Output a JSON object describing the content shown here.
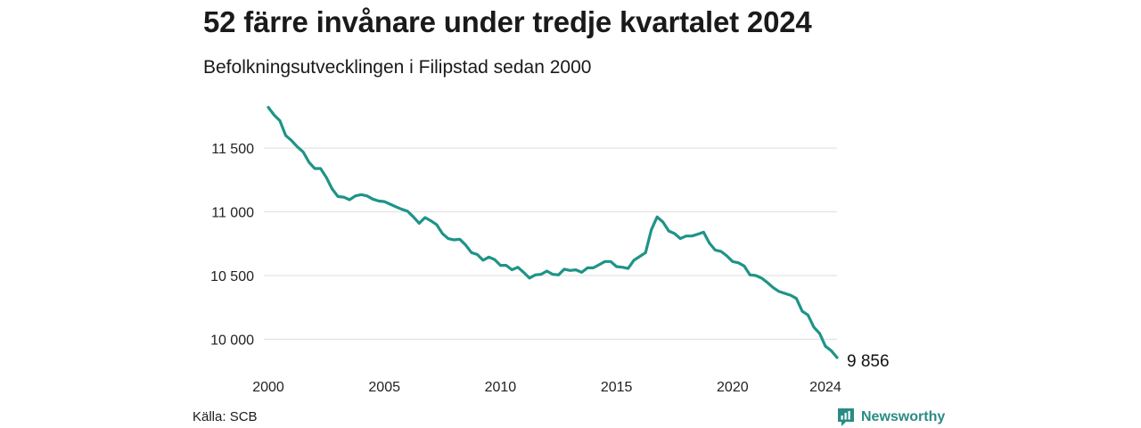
{
  "header": {
    "title": "52 färre invånare under tredje kvartalet 2024",
    "subtitle": "Befolkningsutvecklingen i Filipstad sedan 2000"
  },
  "footer": {
    "source": "Källa: SCB",
    "brand": "Newsworthy",
    "brand_icon": "newsworthy-logo-icon"
  },
  "colors": {
    "line": "#1e9488",
    "grid": "#dddddd",
    "brand": "#2a8b84"
  },
  "chart_data": {
    "type": "line",
    "x_ticks": [
      "2000",
      "2005",
      "2010",
      "2015",
      "2020",
      "2024"
    ],
    "y_ticks": [
      "10 000",
      "10 500",
      "11 000",
      "11 500"
    ],
    "y_tick_values": [
      10000,
      10500,
      11000,
      11500
    ],
    "ylim": [
      9856,
      11830
    ],
    "grid": "horizontal",
    "end_label": "9 856",
    "series": [
      {
        "values": [
          [
            "2000-01",
            11820
          ],
          [
            "2000-04",
            11760
          ],
          [
            "2000-07",
            11715
          ],
          [
            "2000-10",
            11600
          ],
          [
            "2001-01",
            11560
          ],
          [
            "2001-04",
            11510
          ],
          [
            "2001-07",
            11470
          ],
          [
            "2001-10",
            11390
          ],
          [
            "2002-01",
            11340
          ],
          [
            "2002-04",
            11340
          ],
          [
            "2002-07",
            11270
          ],
          [
            "2002-10",
            11180
          ],
          [
            "2003-01",
            11120
          ],
          [
            "2003-04",
            11115
          ],
          [
            "2003-07",
            11095
          ],
          [
            "2003-10",
            11125
          ],
          [
            "2004-01",
            11135
          ],
          [
            "2004-04",
            11125
          ],
          [
            "2004-07",
            11100
          ],
          [
            "2004-10",
            11085
          ],
          [
            "2005-01",
            11080
          ],
          [
            "2005-04",
            11060
          ],
          [
            "2005-07",
            11040
          ],
          [
            "2005-10",
            11020
          ],
          [
            "2006-01",
            11005
          ],
          [
            "2006-04",
            10960
          ],
          [
            "2006-07",
            10910
          ],
          [
            "2006-10",
            10955
          ],
          [
            "2007-01",
            10930
          ],
          [
            "2007-04",
            10900
          ],
          [
            "2007-07",
            10830
          ],
          [
            "2007-10",
            10790
          ],
          [
            "2008-01",
            10780
          ],
          [
            "2008-04",
            10785
          ],
          [
            "2008-07",
            10740
          ],
          [
            "2008-10",
            10680
          ],
          [
            "2009-01",
            10665
          ],
          [
            "2009-04",
            10620
          ],
          [
            "2009-07",
            10645
          ],
          [
            "2009-10",
            10625
          ],
          [
            "2010-01",
            10580
          ],
          [
            "2010-04",
            10580
          ],
          [
            "2010-07",
            10545
          ],
          [
            "2010-10",
            10565
          ],
          [
            "2011-01",
            10525
          ],
          [
            "2011-04",
            10480
          ],
          [
            "2011-07",
            10505
          ],
          [
            "2011-10",
            10510
          ],
          [
            "2012-01",
            10535
          ],
          [
            "2012-04",
            10510
          ],
          [
            "2012-07",
            10505
          ],
          [
            "2012-10",
            10550
          ],
          [
            "2013-01",
            10540
          ],
          [
            "2013-04",
            10545
          ],
          [
            "2013-07",
            10525
          ],
          [
            "2013-10",
            10560
          ],
          [
            "2014-01",
            10560
          ],
          [
            "2014-04",
            10585
          ],
          [
            "2014-07",
            10610
          ],
          [
            "2014-10",
            10610
          ],
          [
            "2015-01",
            10570
          ],
          [
            "2015-04",
            10565
          ],
          [
            "2015-07",
            10555
          ],
          [
            "2015-10",
            10620
          ],
          [
            "2016-01",
            10650
          ],
          [
            "2016-04",
            10680
          ],
          [
            "2016-07",
            10860
          ],
          [
            "2016-10",
            10960
          ],
          [
            "2017-01",
            10920
          ],
          [
            "2017-04",
            10850
          ],
          [
            "2017-07",
            10830
          ],
          [
            "2017-10",
            10790
          ],
          [
            "2018-01",
            10810
          ],
          [
            "2018-04",
            10810
          ],
          [
            "2018-07",
            10825
          ],
          [
            "2018-10",
            10840
          ],
          [
            "2019-01",
            10755
          ],
          [
            "2019-04",
            10700
          ],
          [
            "2019-07",
            10690
          ],
          [
            "2019-10",
            10655
          ],
          [
            "2020-01",
            10610
          ],
          [
            "2020-04",
            10600
          ],
          [
            "2020-07",
            10575
          ],
          [
            "2020-10",
            10505
          ],
          [
            "2021-01",
            10500
          ],
          [
            "2021-04",
            10480
          ],
          [
            "2021-07",
            10445
          ],
          [
            "2021-10",
            10405
          ],
          [
            "2022-01",
            10375
          ],
          [
            "2022-04",
            10360
          ],
          [
            "2022-07",
            10345
          ],
          [
            "2022-10",
            10320
          ],
          [
            "2023-01",
            10220
          ],
          [
            "2023-04",
            10190
          ],
          [
            "2023-07",
            10095
          ],
          [
            "2023-10",
            10045
          ],
          [
            "2024-01",
            9945
          ],
          [
            "2024-04",
            9910
          ],
          [
            "2024-07",
            9856
          ]
        ]
      }
    ]
  }
}
